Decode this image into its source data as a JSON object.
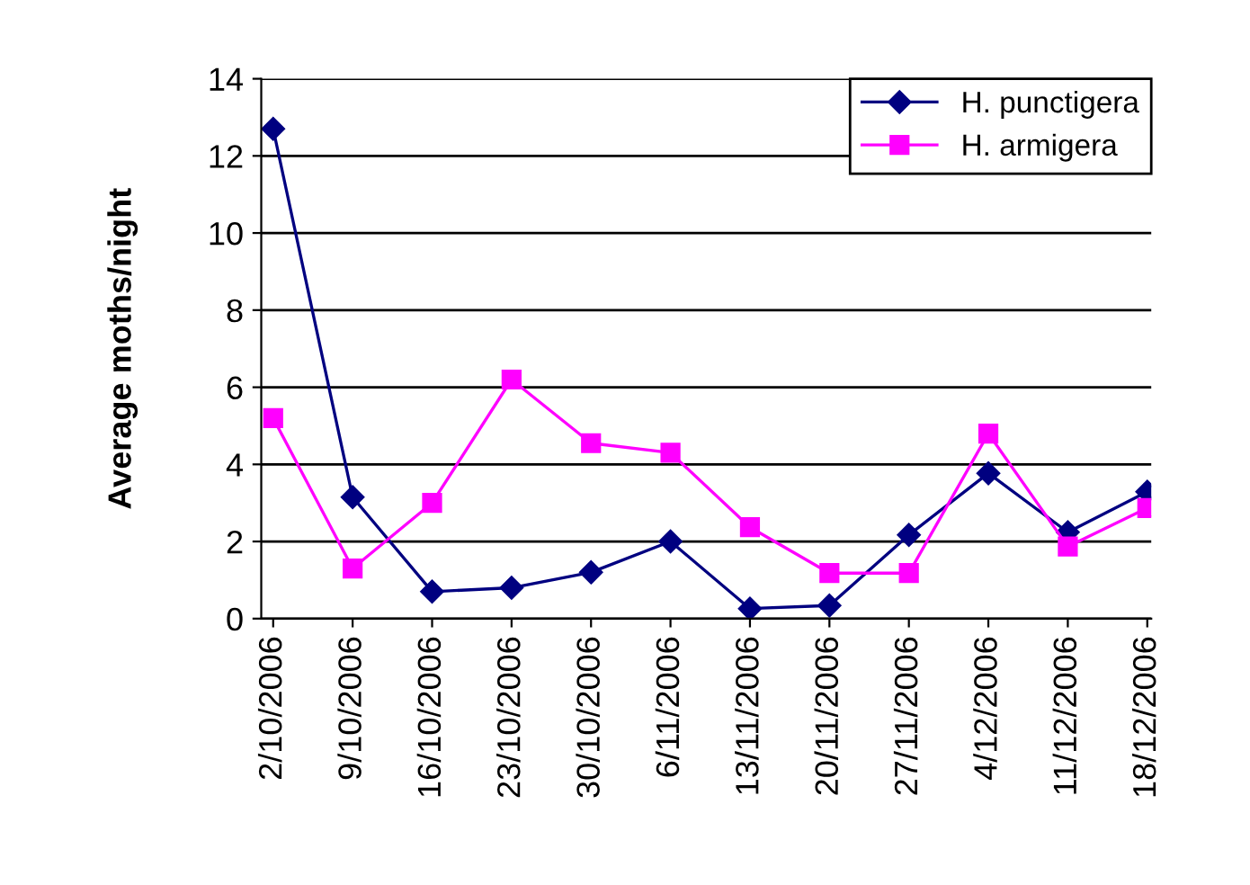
{
  "chart_data": {
    "type": "line",
    "ylabel": "Average moths/night",
    "categories": [
      "2/10/2006",
      "9/10/2006",
      "16/10/2006",
      "23/10/2006",
      "30/10/2006",
      "6/11/2006",
      "13/11/2006",
      "20/11/2006",
      "27/11/2006",
      "4/12/2006",
      "11/12/2006",
      "18/12/2006"
    ],
    "series": [
      {
        "name": "H. punctigera",
        "color": "#000080",
        "marker": "diamond",
        "values": [
          12.7,
          3.15,
          0.7,
          0.8,
          1.2,
          2.0,
          0.26,
          0.34,
          2.17,
          3.77,
          2.24,
          3.29
        ]
      },
      {
        "name": "H. armigera",
        "color": "#ff00ff",
        "marker": "square",
        "values": [
          5.2,
          1.3,
          3.0,
          6.2,
          4.55,
          4.3,
          2.37,
          1.18,
          1.18,
          4.8,
          1.87,
          2.87
        ]
      }
    ],
    "ylim": [
      0,
      14
    ],
    "yticks": [
      0,
      2,
      4,
      6,
      8,
      10,
      12,
      14
    ],
    "grid": "y",
    "legend": "top right",
    "line_style": "solid"
  }
}
